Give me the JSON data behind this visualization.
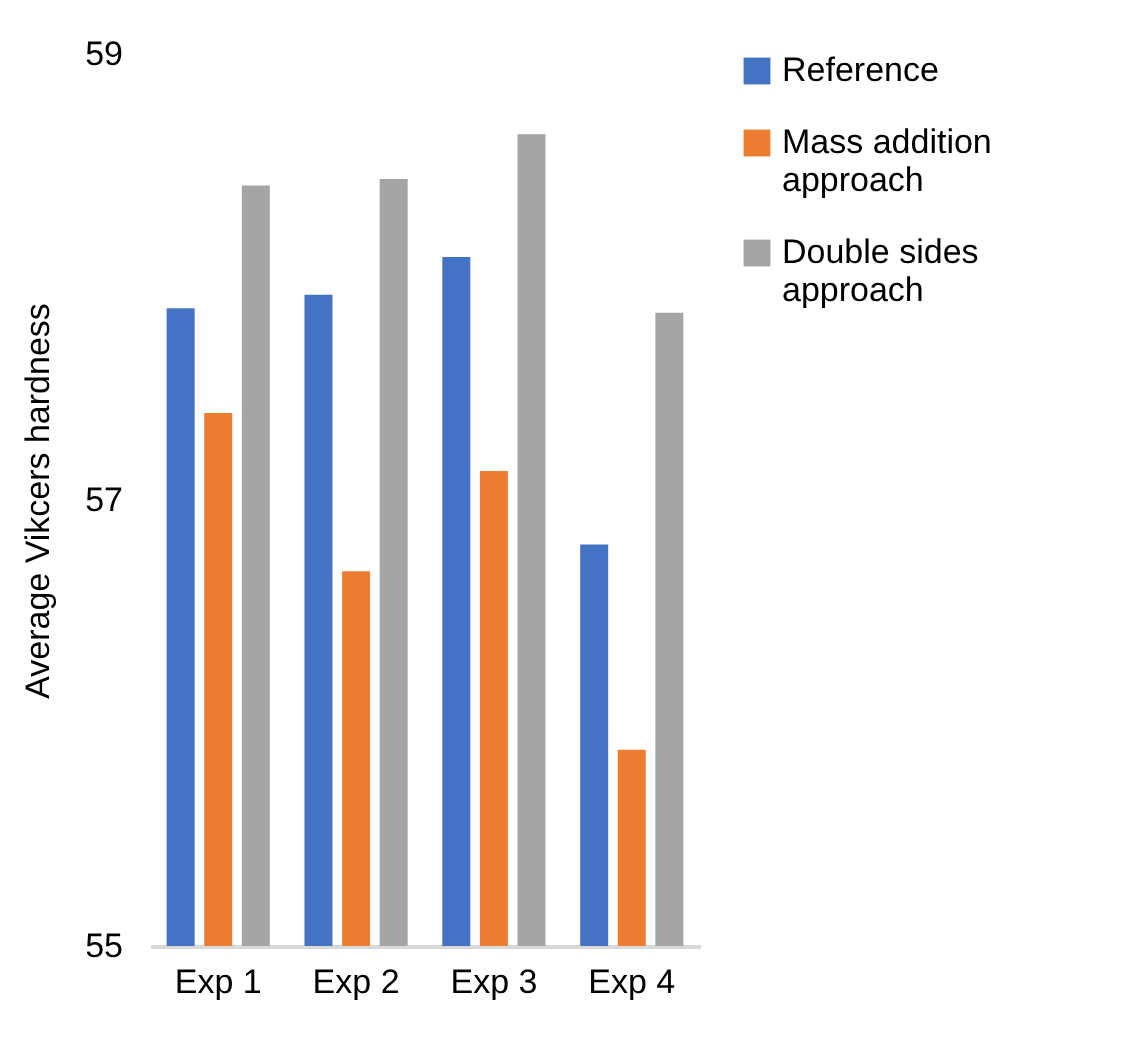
{
  "chart_data": {
    "type": "bar",
    "ylabel": "Average Vikcers hardness",
    "categories": [
      "Exp 1",
      "Exp 2",
      "Exp 3",
      "Exp 4"
    ],
    "series": [
      {
        "name": "Reference",
        "color": "#4472c4",
        "values": [
          57.86,
          57.92,
          58.09,
          56.8
        ]
      },
      {
        "name": "Mass addition approach",
        "color": "#ed7d31",
        "values": [
          57.39,
          56.68,
          57.13,
          55.88
        ]
      },
      {
        "name": "Double sides approach",
        "color": "#a5a5a5",
        "values": [
          58.41,
          58.44,
          58.64,
          57.84
        ]
      }
    ],
    "ylim": [
      55,
      59
    ],
    "yticks": [
      55,
      57,
      59
    ],
    "grid": false,
    "legend": "right"
  }
}
